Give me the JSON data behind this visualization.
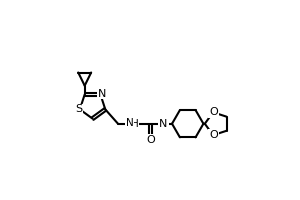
{
  "bg_color": "#ffffff",
  "line_color": "#000000",
  "bond_width": 1.5,
  "figsize": [
    3.0,
    2.0
  ],
  "dpi": 100,
  "xlim": [
    0,
    10
  ],
  "ylim": [
    0,
    6.67
  ]
}
